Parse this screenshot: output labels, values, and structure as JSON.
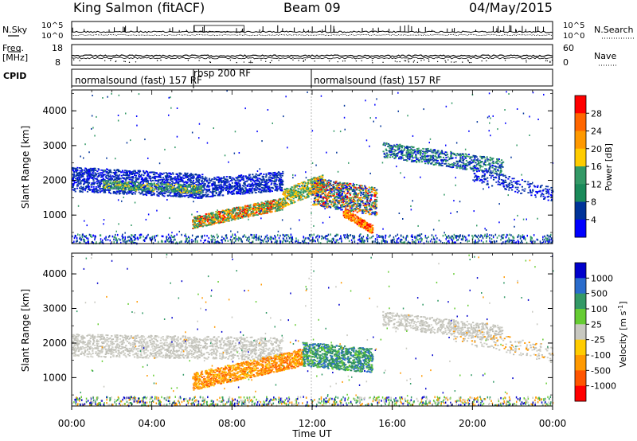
{
  "header": {
    "station": "King Salmon (fitACF)",
    "beam": "Beam 09",
    "date": "04/May/2015"
  },
  "noise_panel": {
    "left_label": "N.Sky",
    "right_label": "N.Search",
    "left_ticks": [
      "10^5",
      "10^0"
    ],
    "right_ticks": [
      "10^5",
      "10^0"
    ]
  },
  "freq_panel": {
    "left_label_line1": "Freq.",
    "left_label_line2": "[MHz]",
    "right_label": "Nave",
    "left_ticks": [
      "18",
      "8"
    ],
    "right_ticks": [
      "60",
      "0"
    ]
  },
  "cpid_panel": {
    "label": "CPID",
    "segments": [
      {
        "text": "normalsound (fast) 157 RF",
        "start_hour": 0.0
      },
      {
        "text": "rbsp 200 RF",
        "start_hour": 6.0
      },
      {
        "text": "normalsound (fast) 157 RF",
        "start_hour": 12.0
      }
    ]
  },
  "chart_data": [
    {
      "type": "heatmap",
      "quantity": "Power",
      "ylabel": "Slant Range [km]",
      "colorbar_label": "Power [dB]",
      "colorbar_ticks": [
        "28",
        "24",
        "20",
        "16",
        "12",
        "8",
        "4"
      ],
      "colorbar_colors": [
        "#ff0000",
        "#ff6600",
        "#ff9900",
        "#ffcc00",
        "#339966",
        "#1a8a5a",
        "#003399",
        "#0000ff"
      ],
      "ylim": [
        180,
        4600
      ],
      "yticks": [
        "1000",
        "2000",
        "3000",
        "4000"
      ],
      "xlim_hours": [
        0,
        24
      ]
    },
    {
      "type": "heatmap",
      "quantity": "Velocity",
      "ylabel": "Slant Range [km]",
      "colorbar_label": "Velocity [m s^-1]",
      "colorbar_ticks": [
        "1000",
        "500",
        "100",
        "25",
        "-25",
        "-100",
        "-500",
        "-1000"
      ],
      "colorbar_colors": [
        "#0000cc",
        "#2a6ccc",
        "#339966",
        "#66cc33",
        "#c8c8c0",
        "#ffcc00",
        "#ff9900",
        "#ff5500",
        "#ff0000"
      ],
      "ylim": [
        180,
        4600
      ],
      "yticks": [
        "1000",
        "2000",
        "3000",
        "4000"
      ],
      "xlim_hours": [
        0,
        24
      ],
      "xlabel": "Time UT",
      "xticks": [
        "00:00",
        "04:00",
        "08:00",
        "12:00",
        "16:00",
        "20:00",
        "00:00"
      ]
    }
  ]
}
